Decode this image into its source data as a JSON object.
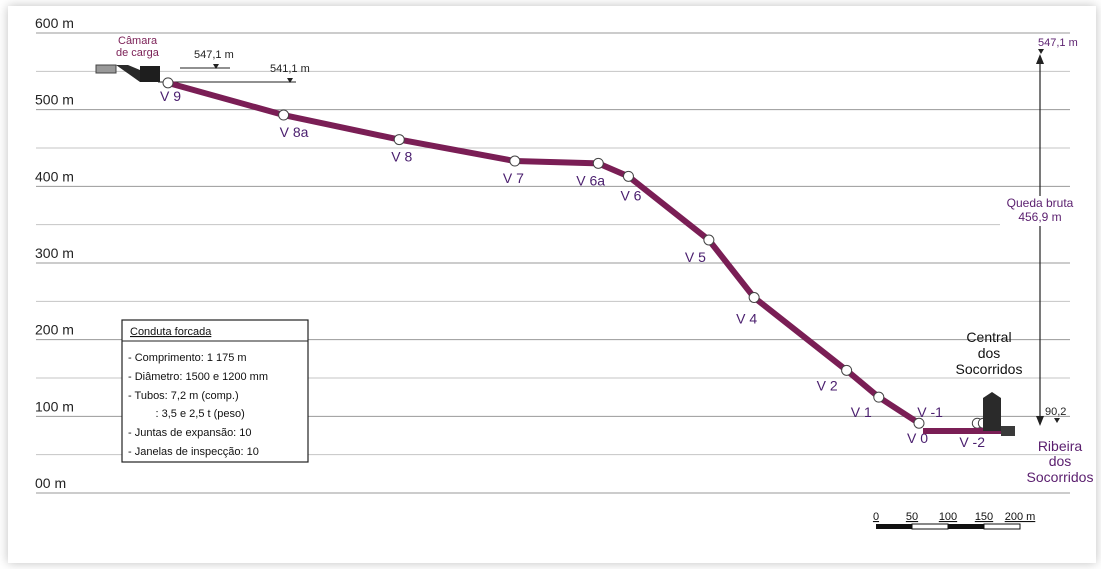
{
  "diagram": {
    "y_axis": {
      "unit": "m",
      "ticks": [
        {
          "value": 600,
          "label": "600 m"
        },
        {
          "value": 500,
          "label": "500 m"
        },
        {
          "value": 400,
          "label": "400 m"
        },
        {
          "value": 300,
          "label": "300 m"
        },
        {
          "value": 200,
          "label": "200 m"
        },
        {
          "value": 100,
          "label": "100 m"
        },
        {
          "value": 0,
          "label": "00 m"
        }
      ],
      "range": [
        0,
        600
      ],
      "half_gridlines": true
    },
    "penstock": {
      "color": "#7a1e55",
      "vertices": [
        {
          "label": "V 9",
          "chainage": 0,
          "elevation": 535
        },
        {
          "label": "V 8a",
          "chainage": 115,
          "elevation": 493
        },
        {
          "label": "V 8",
          "chainage": 230,
          "elevation": 461
        },
        {
          "label": "V 7",
          "chainage": 345,
          "elevation": 433
        },
        {
          "label": "V 6a",
          "chainage": 428,
          "elevation": 430
        },
        {
          "label": "V 6",
          "chainage": 458,
          "elevation": 413
        },
        {
          "label": "V 5",
          "chainage": 538,
          "elevation": 330
        },
        {
          "label": "V 4",
          "chainage": 583,
          "elevation": 255
        },
        {
          "label": "V 2",
          "chainage": 675,
          "elevation": 160
        },
        {
          "label": "V 1",
          "chainage": 707,
          "elevation": 125
        },
        {
          "label": "V 0",
          "chainage": 747,
          "elevation": 91
        },
        {
          "label": "V -1",
          "chainage": 805,
          "elevation": 91
        },
        {
          "label": "V -2",
          "chainage": 811,
          "elevation": 91
        }
      ]
    },
    "labels": {
      "intake": "Câmara de carga",
      "intake_line1": "Câmara",
      "intake_line2": "de carga",
      "level_top": "547,1 m",
      "level_second": "541,1 m",
      "level_right": "547,1 m",
      "level_tail": "90,2",
      "head_line1": "Queda bruta",
      "head_line2": "456,9 m",
      "station_line1": "Central",
      "station_line2": "dos",
      "station_line3": "Socorridos",
      "river_line1": "Ribeira",
      "river_line2": "dos",
      "river_line3": "Socorridos"
    },
    "legend": {
      "title": "Conduta forcada",
      "items": [
        "- Comprimento: 1 175 m",
        "- Diâmetro:  1500 e 1200 mm",
        "- Tubos: 7,2 m (comp.)",
        "         : 3,5 e 2,5 t (peso)",
        "- Juntas de expansão: 10",
        "- Janelas de inspecção: 10"
      ]
    },
    "scale_bar": {
      "ticks": [
        "0",
        "50",
        "100",
        "150",
        "200 m"
      ],
      "values": [
        0,
        50,
        100,
        150,
        200
      ]
    }
  }
}
